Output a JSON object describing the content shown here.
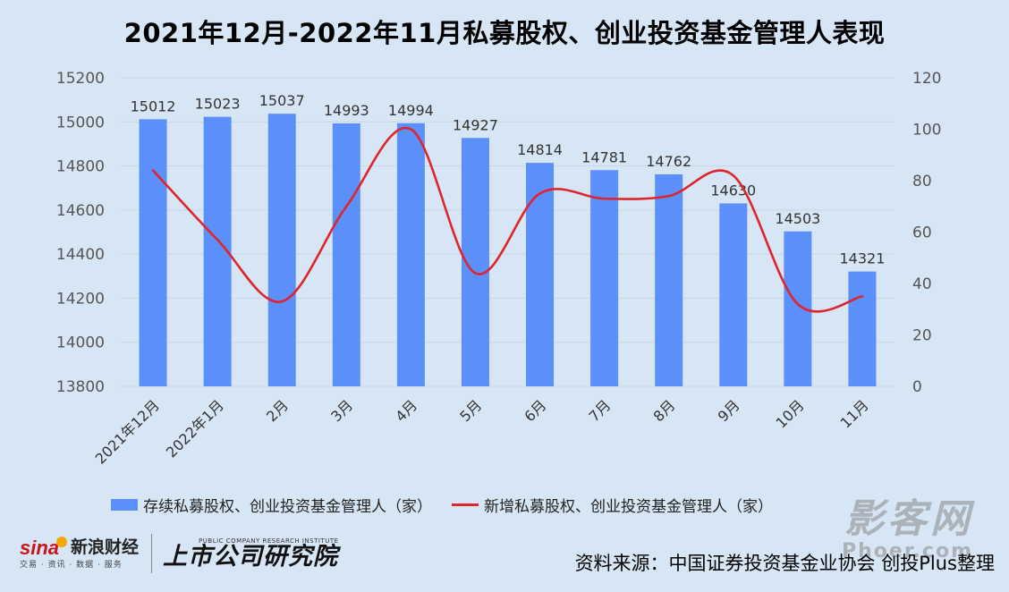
{
  "title": "2021年12月-2022年11月私募股权、创业投资基金管理人表现",
  "colors": {
    "bar": "#5b8ff9",
    "line": "#e0242c",
    "grid": "#c9d6e3",
    "background": "#d6e6f5"
  },
  "chart_data": {
    "type": "bar",
    "title": "2021年12月-2022年11月私募股权、创业投资基金管理人表现",
    "categories": [
      "2021年12月",
      "2022年1月",
      "2月",
      "3月",
      "4月",
      "5月",
      "6月",
      "7月",
      "8月",
      "9月",
      "10月",
      "11月"
    ],
    "series": [
      {
        "name": "存续私募股权、创业投资基金管理人（家）",
        "type": "bar",
        "axis": "left",
        "values": [
          15012,
          15023,
          15037,
          14993,
          14994,
          14927,
          14814,
          14781,
          14762,
          14630,
          14503,
          14321
        ],
        "labels": [
          "15012",
          "15023",
          "15037",
          "14993",
          "14994",
          "14927",
          "14814",
          "14781",
          "14762",
          "14630",
          "14503",
          "14321"
        ]
      },
      {
        "name": "新增私募股权、创业投资基金管理人（家）",
        "type": "line",
        "axis": "right",
        "values": [
          84,
          57,
          33,
          70,
          100,
          44,
          75,
          73,
          74,
          82,
          32,
          35
        ]
      }
    ],
    "y_left": {
      "min": 13800,
      "max": 15200,
      "step": 200,
      "ticks": [
        "13800",
        "14000",
        "14200",
        "14400",
        "14600",
        "14800",
        "15000",
        "15200"
      ]
    },
    "y_right": {
      "min": 0,
      "max": 120,
      "step": 20,
      "ticks": [
        "0",
        "20",
        "40",
        "60",
        "80",
        "100",
        "120"
      ]
    },
    "grid": true,
    "legend": "bottom"
  },
  "legend": {
    "bar_label": "存续私募股权、创业投资基金管理人（家）",
    "line_label": "新增私募股权、创业投资基金管理人（家）"
  },
  "footer": {
    "sina_brand": "sina",
    "sina_cn": "新浪财经",
    "sina_sub": "交易 · 资讯 · 数据 · 服务",
    "institute_en": "PUBLIC COMPANY RESEARCH INSTITUTE",
    "institute_cn": "上市公司研究院",
    "source": "资料来源：中国证券投资基金业协会 创投Plus整理"
  },
  "watermark": {
    "cn": "影客网",
    "en": "Phoer.com"
  }
}
